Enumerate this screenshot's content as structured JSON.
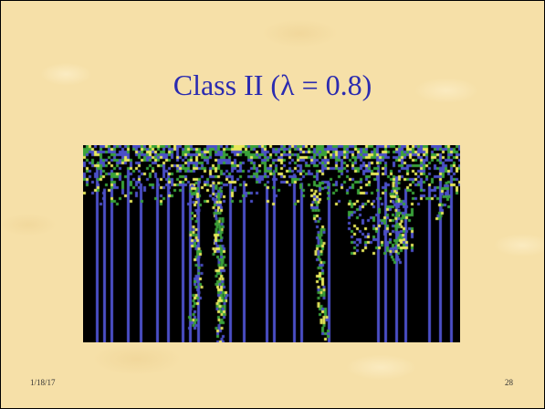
{
  "slide": {
    "title": "Class II (λ = 0.8)",
    "date": "1/18/17",
    "page_number": "28"
  },
  "colors": {
    "title": "#2b2bb0",
    "background": "#f6e0a8",
    "figure_background": "#000000",
    "stripe_blue": "#4b4fc8",
    "cell_green": "#3aa23a",
    "cell_yellow": "#e8e85a"
  }
}
